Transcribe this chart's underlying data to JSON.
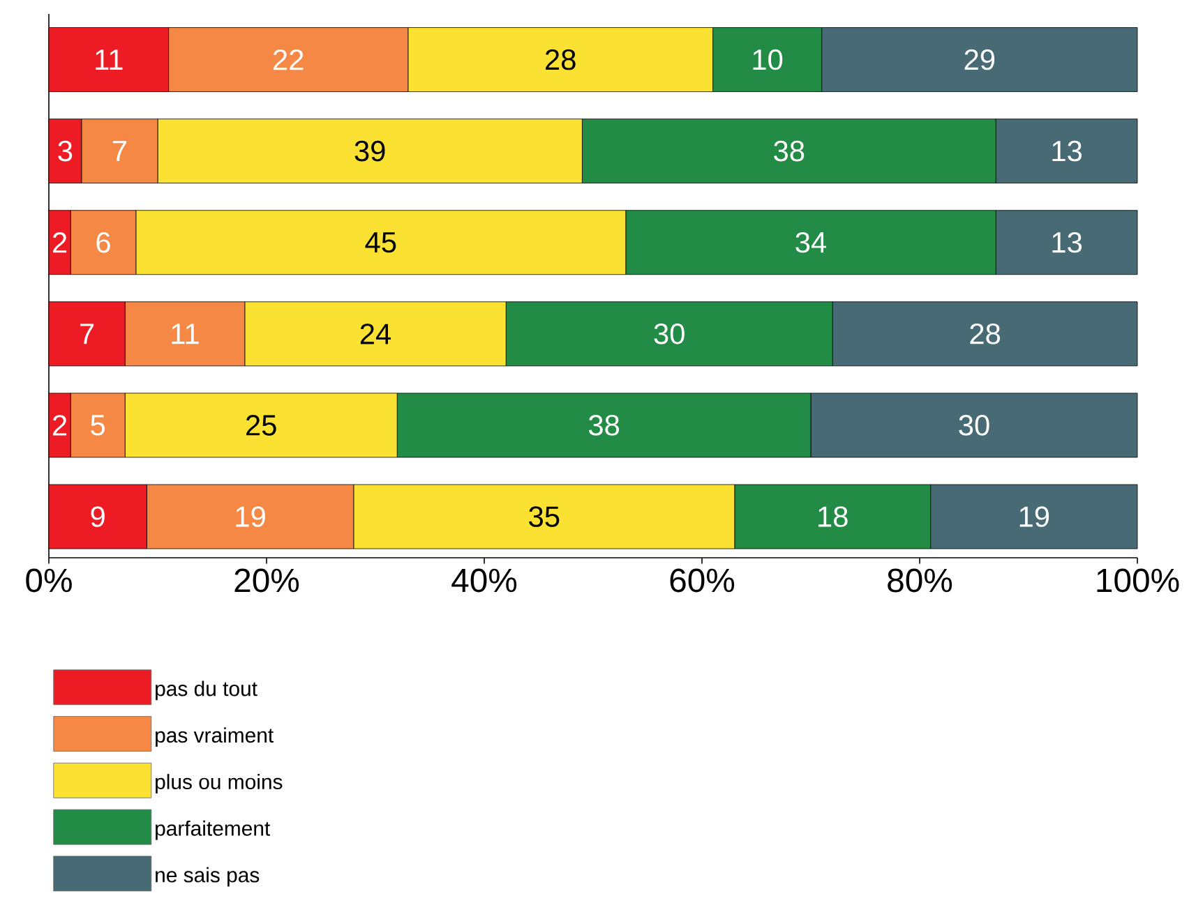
{
  "chart_data": {
    "type": "bar",
    "orientation": "horizontal",
    "stacked": true,
    "data_labels": true,
    "legend": "bottom left",
    "grid": false,
    "categories": [
      null,
      null,
      null,
      null,
      null,
      null
    ],
    "xlim": [
      0,
      100
    ],
    "xticks": [
      {
        "value": 0,
        "label": "0%"
      },
      {
        "value": 20,
        "label": "20%"
      },
      {
        "value": 40,
        "label": "40%"
      },
      {
        "value": 60,
        "label": "60%"
      },
      {
        "value": 80,
        "label": "80%"
      },
      {
        "value": 100,
        "label": "100%"
      }
    ],
    "series": [
      {
        "name": "pas du tout",
        "color": "#ed1c24",
        "values": [
          11,
          3,
          2,
          7,
          2,
          9
        ]
      },
      {
        "name": "pas vraiment",
        "color": "#f58845",
        "values": [
          22,
          7,
          6,
          11,
          5,
          19
        ]
      },
      {
        "name": "plus ou moins",
        "color": "#fbe131",
        "values": [
          28,
          39,
          45,
          24,
          25,
          35
        ]
      },
      {
        "name": "parfaitement",
        "color": "#228b45",
        "values": [
          10,
          38,
          34,
          30,
          38,
          18
        ]
      },
      {
        "name": "ne sais pas",
        "color": "#476a75",
        "values": [
          29,
          13,
          13,
          28,
          30,
          19
        ]
      }
    ]
  }
}
